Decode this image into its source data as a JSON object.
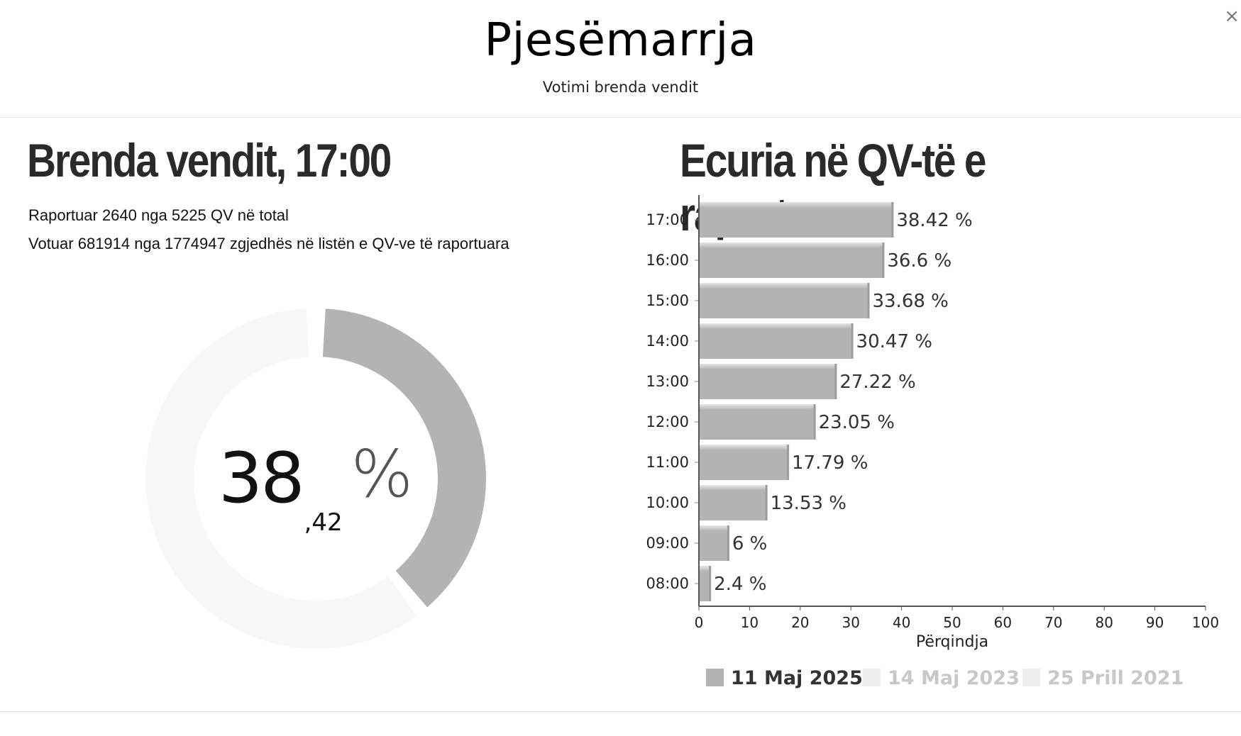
{
  "header": {
    "title": "Pjesëmarrja",
    "subtitle": "Votimi brenda vendit",
    "close_label": "×"
  },
  "left": {
    "heading": "Brenda vendit, 17:00",
    "reported_line": "Raportuar 2640 nga 5225 QV në total",
    "voted_line": "Votuar 681914 nga 1774947 zgjedhës në listën e QV-ve të raportuara",
    "donut": {
      "value_percent": 38.42,
      "integer_part": "38",
      "decimal_part": ",42",
      "percent_sign": "%",
      "fill_color": "#b3b3b3",
      "track_color": "#f7f7f7"
    }
  },
  "right": {
    "heading": "Ecuria në QV-të e raportuara"
  },
  "chart_data": {
    "type": "bar",
    "orientation": "horizontal",
    "categories": [
      "17:00",
      "16:00",
      "15:00",
      "14:00",
      "13:00",
      "12:00",
      "11:00",
      "10:00",
      "09:00",
      "08:00"
    ],
    "series": [
      {
        "name": "11 Maj 2025",
        "color": "#b3b3b3",
        "values": [
          38.42,
          36.6,
          33.68,
          30.47,
          27.22,
          23.05,
          17.79,
          13.53,
          6,
          2.4
        ],
        "data_labels": [
          "38.42 %",
          "36.6 %",
          "33.68 %",
          "30.47 %",
          "27.22 %",
          "23.05 %",
          "17.79 %",
          "13.53 %",
          "6 %",
          "2.4 %"
        ]
      }
    ],
    "legend": [
      {
        "label": "11 Maj 2025",
        "color": "#b3b3b3",
        "active": true
      },
      {
        "label": "14 Maj 2023",
        "color": "#eeeeee",
        "active": false
      },
      {
        "label": "25 Prill 2021",
        "color": "#eeeeee",
        "active": false
      }
    ],
    "legend_position": "bottom",
    "xlabel": "Përqindja",
    "xlim": [
      0,
      100
    ],
    "xticks": [
      0,
      10,
      20,
      30,
      40,
      50,
      60,
      70,
      80,
      90,
      100
    ],
    "grid": false
  }
}
